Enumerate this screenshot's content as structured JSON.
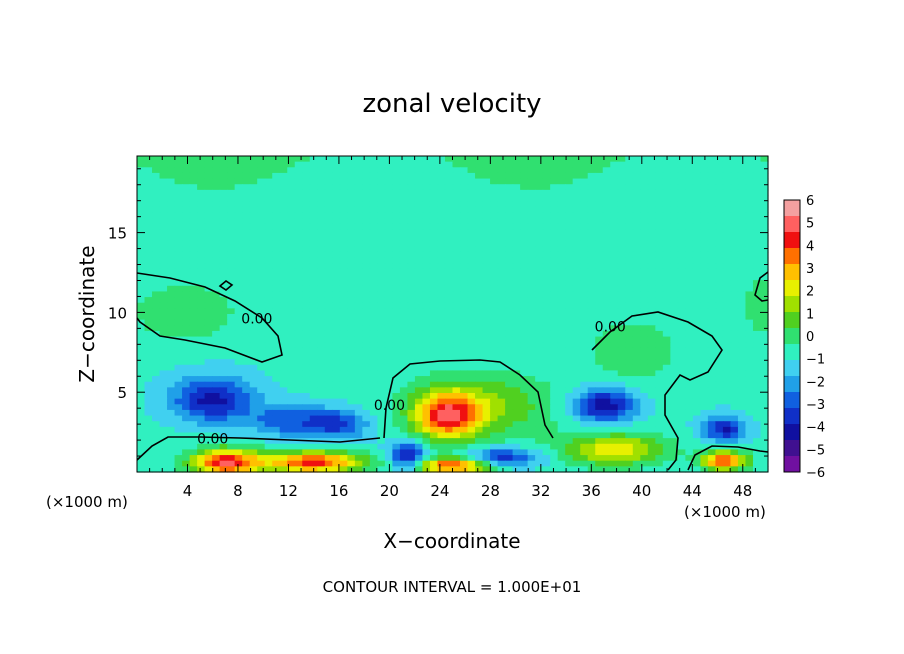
{
  "chart_data": {
    "type": "heatmap",
    "title": "zonal velocity",
    "xlabel": "X−coordinate",
    "ylabel": "Z−coordinate",
    "x_unit_left": "(×1000 m)",
    "x_unit_right": "(×1000 m)",
    "footer": "CONTOUR INTERVAL = 1.000E+01",
    "xlim": [
      0,
      50
    ],
    "ylim": [
      0,
      19.8
    ],
    "x_ticks": [
      4,
      8,
      12,
      16,
      20,
      24,
      28,
      32,
      36,
      40,
      44,
      48
    ],
    "y_ticks": [
      5,
      10,
      15
    ],
    "colorbar": {
      "min": -6,
      "max": 6,
      "labels": [
        "6",
        "5",
        "4",
        "3",
        "2",
        "1",
        "0",
        "−1",
        "−2",
        "−3",
        "−4",
        "−5",
        "−6"
      ],
      "colors": [
        "#f4a0a0",
        "#ff6060",
        "#f01010",
        "#ff7000",
        "#ffc000",
        "#e8f000",
        "#a0e000",
        "#50d020",
        "#30e070",
        "#30f0c0",
        "#40d0f0",
        "#20a0e8",
        "#1060e0",
        "#1030c8",
        "#1010a0",
        "#401090",
        "#7010a0"
      ]
    },
    "contour_labels": [
      {
        "text": "0.00",
        "x": 9.5,
        "z": 9.3
      },
      {
        "text": "0.00",
        "x": 6.0,
        "z": 1.8
      },
      {
        "text": "0.00",
        "x": 20.0,
        "z": 3.9
      },
      {
        "text": "0.00",
        "x": 37.5,
        "z": 8.8
      }
    ],
    "features": [
      {
        "x": 6.0,
        "z": 4.5,
        "v": -3.3,
        "sx": 3.2,
        "sz": 1.4
      },
      {
        "x": 12.0,
        "z": 3.2,
        "v": -2.2,
        "sx": 3.0,
        "sz": 1.0
      },
      {
        "x": 16.0,
        "z": 3.0,
        "v": -2.4,
        "sx": 2.2,
        "sz": 0.9
      },
      {
        "x": 37.0,
        "z": 4.2,
        "v": -3.6,
        "sx": 2.4,
        "sz": 1.1
      },
      {
        "x": 46.5,
        "z": 2.7,
        "v": -3.0,
        "sx": 1.6,
        "sz": 0.8
      },
      {
        "x": 21.5,
        "z": 1.0,
        "v": -3.5,
        "sx": 1.4,
        "sz": 0.9
      },
      {
        "x": 29.0,
        "z": 0.9,
        "v": -3.0,
        "sx": 3.0,
        "sz": 0.6
      },
      {
        "x": 24.5,
        "z": 3.5,
        "v": 4.6,
        "sx": 2.6,
        "sz": 1.5
      },
      {
        "x": 27.5,
        "z": 4.2,
        "v": 2.0,
        "sx": 5.5,
        "sz": 2.0
      },
      {
        "x": 7.0,
        "z": 0.6,
        "v": 5.5,
        "sx": 2.6,
        "sz": 0.8
      },
      {
        "x": 14.0,
        "z": 0.6,
        "v": 5.0,
        "sx": 4.0,
        "sz": 0.7
      },
      {
        "x": 25.0,
        "z": 0.4,
        "v": 5.0,
        "sx": 3.0,
        "sz": 0.5
      },
      {
        "x": 38.0,
        "z": 1.4,
        "v": 3.2,
        "sx": 4.0,
        "sz": 1.0
      },
      {
        "x": 46.5,
        "z": 0.7,
        "v": 5.0,
        "sx": 1.8,
        "sz": 0.6
      },
      {
        "x": 4.0,
        "z": 10.0,
        "v": 1.2,
        "sx": 4.5,
        "sz": 2.0
      },
      {
        "x": 39.0,
        "z": 7.5,
        "v": 1.1,
        "sx": 3.5,
        "sz": 2.0
      },
      {
        "x": 49.5,
        "z": 10.5,
        "v": 1.0,
        "sx": 1.5,
        "sz": 2.0
      }
    ]
  }
}
